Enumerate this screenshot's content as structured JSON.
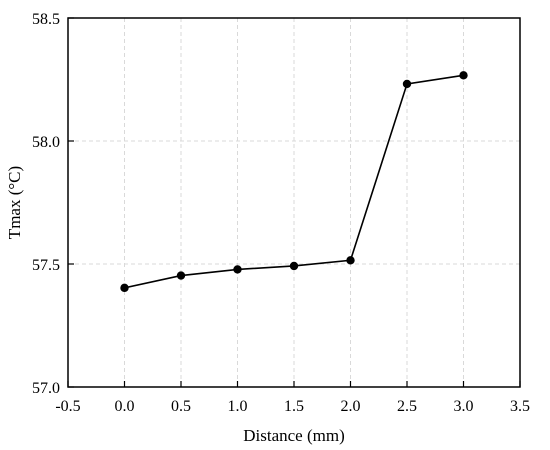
{
  "chart_data": {
    "type": "line",
    "title": "",
    "xlabel": "Distance (mm)",
    "ylabel": "Tmax (°C)",
    "xlim": [
      -0.5,
      3.5
    ],
    "ylim": [
      57.0,
      58.5
    ],
    "x_ticks": [
      "-0.5",
      "0.0",
      "0.5",
      "1.0",
      "1.5",
      "2.0",
      "2.5",
      "3.0",
      "3.5"
    ],
    "y_ticks": [
      "57.0",
      "57.5",
      "58.0",
      "58.5"
    ],
    "grid": true,
    "series": [
      {
        "x": [
          0.0,
          0.5,
          1.0,
          1.5,
          2.0,
          2.5,
          3.0
        ],
        "y": [
          57.403,
          57.453,
          57.478,
          57.492,
          57.515,
          58.232,
          58.267
        ],
        "color": "#000000",
        "marker": "circle"
      }
    ]
  }
}
